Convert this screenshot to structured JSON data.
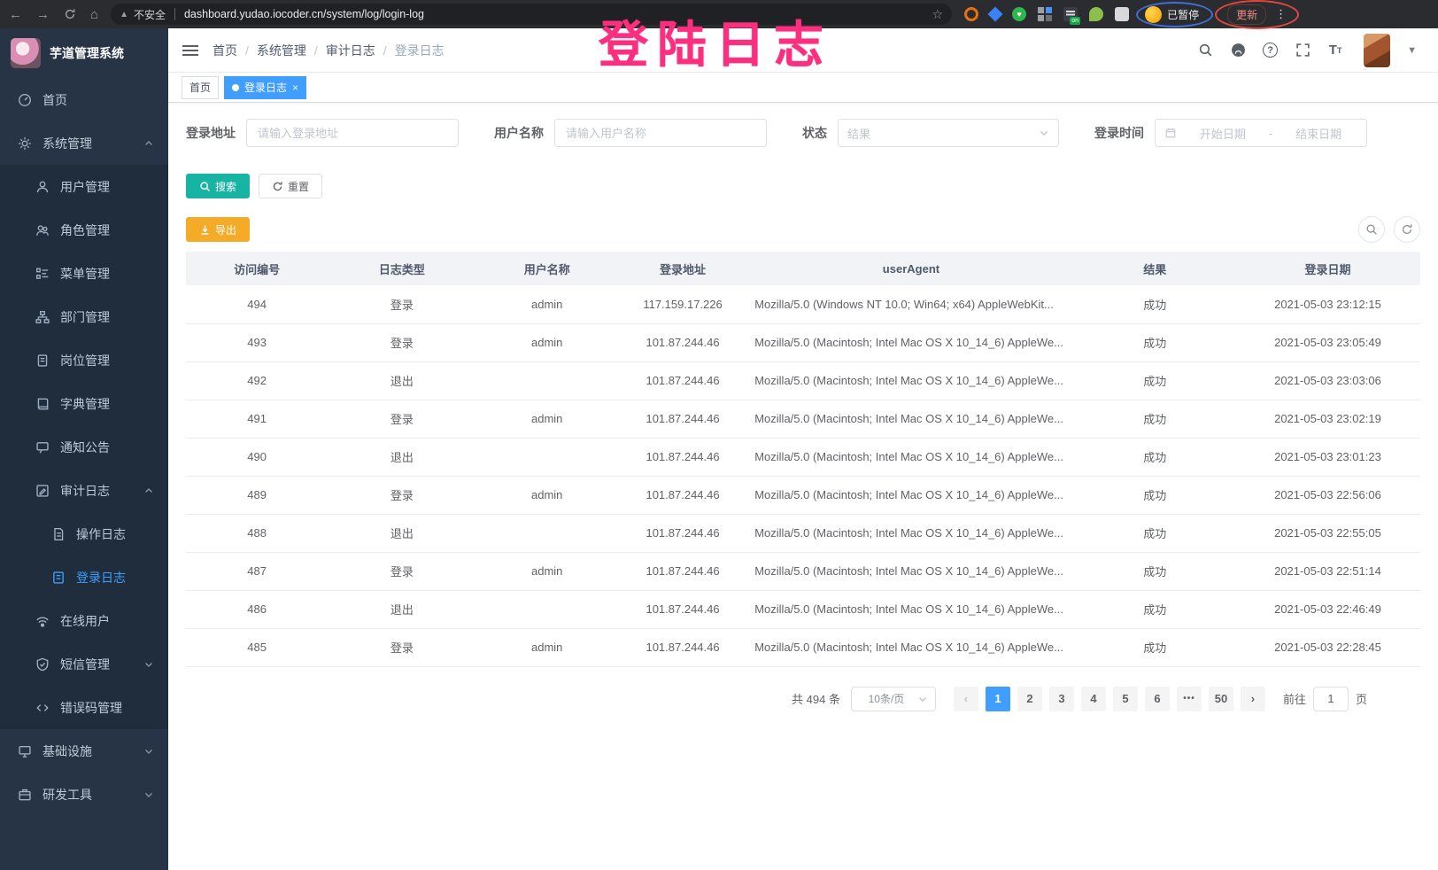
{
  "annotation": {
    "title": "登陆日志",
    "color": "#fb2e7f"
  },
  "browser": {
    "security_warning": "不安全",
    "url": "dashboard.yudao.iocoder.cn/system/log/login-log",
    "profile_status": "已暂停",
    "update_label": "更新"
  },
  "sidebar": {
    "app_title": "芋道管理系统",
    "items": [
      {
        "id": "home",
        "label": "首页",
        "icon": "dashboard-icon",
        "level": 1
      },
      {
        "id": "system-management",
        "label": "系统管理",
        "icon": "gear-icon",
        "level": 1,
        "chevron": "up"
      },
      {
        "id": "user-management",
        "label": "用户管理",
        "icon": "user-icon",
        "level": 2
      },
      {
        "id": "role-management",
        "label": "角色管理",
        "icon": "users-icon",
        "level": 2
      },
      {
        "id": "menu-management",
        "label": "菜单管理",
        "icon": "menu-tree-icon",
        "level": 2
      },
      {
        "id": "dept-management",
        "label": "部门管理",
        "icon": "org-tree-icon",
        "level": 2
      },
      {
        "id": "post-management",
        "label": "岗位管理",
        "icon": "badge-icon",
        "level": 2
      },
      {
        "id": "dict-management",
        "label": "字典管理",
        "icon": "book-icon",
        "level": 2
      },
      {
        "id": "notice",
        "label": "通知公告",
        "icon": "announcement-icon",
        "level": 2
      },
      {
        "id": "audit-log",
        "label": "审计日志",
        "icon": "audit-icon",
        "level": 2,
        "chevron": "up"
      },
      {
        "id": "operation-log",
        "label": "操作日志",
        "icon": "operation-log-icon",
        "level": 3
      },
      {
        "id": "login-log",
        "label": "登录日志",
        "icon": "login-log-icon",
        "level": 3,
        "active": true
      },
      {
        "id": "online-users",
        "label": "在线用户",
        "icon": "online-users-icon",
        "level": 2
      },
      {
        "id": "sms-management",
        "label": "短信管理",
        "icon": "sms-icon",
        "level": 2,
        "chevron": "down"
      },
      {
        "id": "error-code",
        "label": "错误码管理",
        "icon": "error-code-icon",
        "level": 2
      },
      {
        "id": "infrastructure",
        "label": "基础设施",
        "icon": "infrastructure-icon",
        "level": 1,
        "chevron": "down"
      },
      {
        "id": "dev-tools",
        "label": "研发工具",
        "icon": "dev-tools-icon",
        "level": 1,
        "chevron": "down"
      }
    ]
  },
  "header": {
    "breadcrumb": [
      "首页",
      "系统管理",
      "审计日志",
      "登录日志"
    ]
  },
  "tabs": [
    {
      "label": "首页",
      "active": false,
      "closable": false
    },
    {
      "label": "登录日志",
      "active": true,
      "closable": true
    }
  ],
  "filters": {
    "login_address_label": "登录地址",
    "login_address_placeholder": "请输入登录地址",
    "username_label": "用户名称",
    "username_placeholder": "请输入用户名称",
    "status_label": "状态",
    "status_placeholder": "结果",
    "login_time_label": "登录时间",
    "date_start_placeholder": "开始日期",
    "date_separator": "-",
    "date_end_placeholder": "结束日期",
    "search_label": "搜索",
    "reset_label": "重置"
  },
  "toolbar": {
    "export_label": "导出"
  },
  "table": {
    "columns": [
      "访问编号",
      "日志类型",
      "用户名称",
      "登录地址",
      "userAgent",
      "结果",
      "登录日期"
    ],
    "rows": [
      [
        "494",
        "登录",
        "admin",
        "117.159.17.226",
        "Mozilla/5.0 (Windows NT 10.0; Win64; x64) AppleWebKit...",
        "成功",
        "2021-05-03 23:12:15"
      ],
      [
        "493",
        "登录",
        "admin",
        "101.87.244.46",
        "Mozilla/5.0 (Macintosh; Intel Mac OS X 10_14_6) AppleWe...",
        "成功",
        "2021-05-03 23:05:49"
      ],
      [
        "492",
        "退出",
        "",
        "101.87.244.46",
        "Mozilla/5.0 (Macintosh; Intel Mac OS X 10_14_6) AppleWe...",
        "成功",
        "2021-05-03 23:03:06"
      ],
      [
        "491",
        "登录",
        "admin",
        "101.87.244.46",
        "Mozilla/5.0 (Macintosh; Intel Mac OS X 10_14_6) AppleWe...",
        "成功",
        "2021-05-03 23:02:19"
      ],
      [
        "490",
        "退出",
        "",
        "101.87.244.46",
        "Mozilla/5.0 (Macintosh; Intel Mac OS X 10_14_6) AppleWe...",
        "成功",
        "2021-05-03 23:01:23"
      ],
      [
        "489",
        "登录",
        "admin",
        "101.87.244.46",
        "Mozilla/5.0 (Macintosh; Intel Mac OS X 10_14_6) AppleWe...",
        "成功",
        "2021-05-03 22:56:06"
      ],
      [
        "488",
        "退出",
        "",
        "101.87.244.46",
        "Mozilla/5.0 (Macintosh; Intel Mac OS X 10_14_6) AppleWe...",
        "成功",
        "2021-05-03 22:55:05"
      ],
      [
        "487",
        "登录",
        "admin",
        "101.87.244.46",
        "Mozilla/5.0 (Macintosh; Intel Mac OS X 10_14_6) AppleWe...",
        "成功",
        "2021-05-03 22:51:14"
      ],
      [
        "486",
        "退出",
        "",
        "101.87.244.46",
        "Mozilla/5.0 (Macintosh; Intel Mac OS X 10_14_6) AppleWe...",
        "成功",
        "2021-05-03 22:46:49"
      ],
      [
        "485",
        "登录",
        "admin",
        "101.87.244.46",
        "Mozilla/5.0 (Macintosh; Intel Mac OS X 10_14_6) AppleWe...",
        "成功",
        "2021-05-03 22:28:45"
      ]
    ]
  },
  "pagination": {
    "total_text": "共 494 条",
    "page_size": "10条/页",
    "pages": [
      "1",
      "2",
      "3",
      "4",
      "5",
      "6",
      "•••",
      "50"
    ],
    "active_page": "1",
    "goto_label": "前往",
    "goto_value": "1",
    "goto_suffix": "页"
  },
  "colors": {
    "accent": "#409eff",
    "sidebar_bg": "#263445",
    "submenu_bg": "#1f2d3d",
    "search_button": "#17b3a3",
    "export_button": "#f3ab28",
    "annotation": "#fb2e7f"
  }
}
